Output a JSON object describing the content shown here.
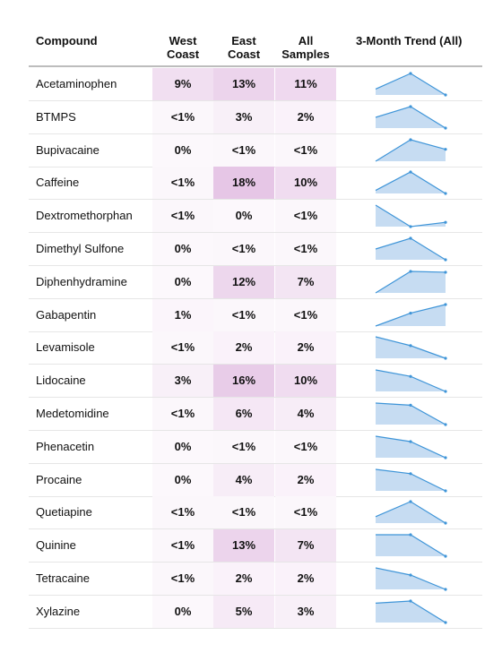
{
  "chart_data": {
    "type": "table",
    "columns": {
      "compound": "Compound",
      "west": "West\nCoast",
      "east": "East\nCoast",
      "all": "All\nSamples",
      "trend": "3-Month Trend (All)"
    },
    "colors": {
      "heat_max": "#e6c6e6",
      "heat_min": "#fcf8fc",
      "trend_fill": "#c6dcf2",
      "trend_line": "#3f95d8"
    },
    "rows": [
      {
        "compound": "Acetaminophen",
        "west": "9%",
        "east": "13%",
        "all": "11%",
        "west_v": 9,
        "east_v": 13,
        "all_v": 11,
        "trend": [
          6,
          22,
          0
        ]
      },
      {
        "compound": "BTMPS",
        "west": "<1%",
        "east": "3%",
        "all": "2%",
        "west_v": 0.5,
        "east_v": 3,
        "all_v": 2,
        "trend": [
          3,
          6,
          0
        ]
      },
      {
        "compound": "Bupivacaine",
        "west": "0%",
        "east": "<1%",
        "all": "<1%",
        "west_v": 0,
        "east_v": 0.5,
        "all_v": 0.5,
        "trend": [
          0,
          1.8,
          1.0
        ]
      },
      {
        "compound": "Caffeine",
        "west": "<1%",
        "east": "18%",
        "all": "10%",
        "west_v": 0.5,
        "east_v": 18,
        "all_v": 10,
        "trend": [
          2,
          14,
          0
        ]
      },
      {
        "compound": "Dextromethorphan",
        "west": "<1%",
        "east": "0%",
        "all": "<1%",
        "west_v": 0.5,
        "east_v": 0,
        "all_v": 0.5,
        "trend": [
          1.0,
          0,
          0.2
        ]
      },
      {
        "compound": "Dimethyl Sulfone",
        "west": "0%",
        "east": "<1%",
        "all": "<1%",
        "west_v": 0,
        "east_v": 0.5,
        "all_v": 0.5,
        "trend": [
          0.5,
          1.0,
          0
        ]
      },
      {
        "compound": "Diphenhydramine",
        "west": "0%",
        "east": "12%",
        "all": "7%",
        "west_v": 0,
        "east_v": 12,
        "all_v": 7,
        "trend": [
          0,
          10,
          9.6
        ]
      },
      {
        "compound": "Gabapentin",
        "west": "1%",
        "east": "<1%",
        "all": "<1%",
        "west_v": 1,
        "east_v": 0.5,
        "all_v": 0.5,
        "trend": [
          0,
          0.6,
          1.0
        ]
      },
      {
        "compound": "Levamisole",
        "west": "<1%",
        "east": "2%",
        "all": "2%",
        "west_v": 0.5,
        "east_v": 2,
        "all_v": 2,
        "trend": [
          4,
          2.6,
          0.6
        ]
      },
      {
        "compound": "Lidocaine",
        "west": "3%",
        "east": "16%",
        "all": "10%",
        "west_v": 3,
        "east_v": 16,
        "all_v": 10,
        "trend": [
          12,
          9,
          2
        ]
      },
      {
        "compound": "Medetomidine",
        "west": "<1%",
        "east": "6%",
        "all": "4%",
        "west_v": 0.5,
        "east_v": 6,
        "all_v": 4,
        "trend": [
          7,
          6.4,
          1
        ]
      },
      {
        "compound": "Phenacetin",
        "west": "0%",
        "east": "<1%",
        "all": "<1%",
        "west_v": 0,
        "east_v": 0.5,
        "all_v": 0.5,
        "trend": [
          1.0,
          0.75,
          0
        ]
      },
      {
        "compound": "Procaine",
        "west": "0%",
        "east": "4%",
        "all": "2%",
        "west_v": 0,
        "east_v": 4,
        "all_v": 2,
        "trend": [
          4,
          3.2,
          0
        ]
      },
      {
        "compound": "Quetiapine",
        "west": "<1%",
        "east": "<1%",
        "all": "<1%",
        "west_v": 0.5,
        "east_v": 0.5,
        "all_v": 0.5,
        "trend": [
          0.3,
          1.0,
          0
        ]
      },
      {
        "compound": "Quinine",
        "west": "<1%",
        "east": "13%",
        "all": "7%",
        "west_v": 0.5,
        "east_v": 13,
        "all_v": 7,
        "trend": [
          10,
          10,
          0
        ]
      },
      {
        "compound": "Tetracaine",
        "west": "<1%",
        "east": "2%",
        "all": "2%",
        "west_v": 0.5,
        "east_v": 2,
        "all_v": 2,
        "trend": [
          3,
          2,
          0
        ]
      },
      {
        "compound": "Xylazine",
        "west": "0%",
        "east": "5%",
        "all": "3%",
        "west_v": 0,
        "east_v": 5,
        "all_v": 3,
        "trend": [
          9,
          10,
          0
        ]
      }
    ]
  }
}
